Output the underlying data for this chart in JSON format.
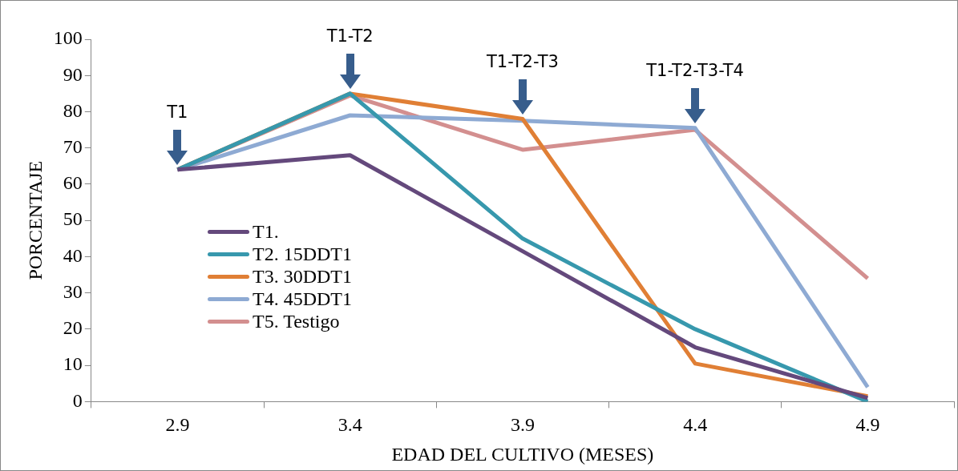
{
  "chart_data": {
    "type": "line",
    "xlabel": "EDAD DEL CULTIVO (MESES)",
    "ylabel": "PORCENTAJE",
    "categories": [
      "2.9",
      "3.4",
      "3.9",
      "4.4",
      "4.9"
    ],
    "series": [
      {
        "name": "T1.",
        "color": "#64497c",
        "values": [
          64,
          68,
          41.5,
          15,
          1
        ]
      },
      {
        "name": "T2. 15DDT1",
        "color": "#3798ad",
        "values": [
          64,
          85,
          45,
          20,
          0
        ]
      },
      {
        "name": "T3. 30DDT1",
        "color": "#e07f35",
        "values": [
          64,
          85,
          78,
          10.5,
          1.5
        ]
      },
      {
        "name": "T4. 45DDT1",
        "color": "#8eaad3",
        "values": [
          64,
          79,
          77.5,
          75.5,
          4
        ]
      },
      {
        "name": "T5. Testigo",
        "color": "#d38f8f",
        "values": [
          64,
          84.5,
          69.5,
          75,
          34
        ]
      }
    ],
    "ylim": [
      0,
      100
    ],
    "yticks": [
      0,
      10,
      20,
      30,
      40,
      50,
      60,
      70,
      80,
      90,
      100
    ],
    "grid": false,
    "legend": "bottom left",
    "marker": "none",
    "line_style": "solid",
    "annotations": [
      {
        "text": "T1",
        "x": "2.9",
        "y": 64
      },
      {
        "text": "T1-T2",
        "x": "3.4",
        "y": 85
      },
      {
        "text": "T1-T2-T3",
        "x": "3.9",
        "y": 78
      },
      {
        "text": "T1-T2-T3-T4",
        "x": "4.4",
        "y": 75.5
      }
    ]
  }
}
